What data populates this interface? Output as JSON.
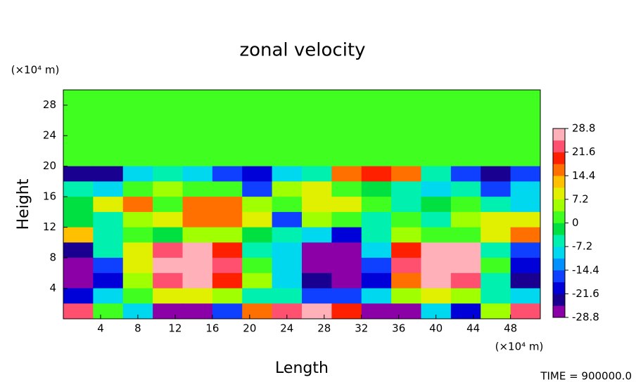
{
  "chart_data": {
    "type": "contour",
    "title": "zonal velocity",
    "xlabel": "Length",
    "ylabel": "Height",
    "xunit": "(×10⁴ m)",
    "yunit": "(×10⁴ m)",
    "footer": "TIME = 900000.0",
    "xlim": [
      0,
      51.2
    ],
    "ylim": [
      0,
      30
    ],
    "xticks": [
      4,
      8,
      12,
      16,
      20,
      24,
      28,
      32,
      36,
      40,
      44,
      48
    ],
    "yticks": [
      4,
      8,
      12,
      16,
      20,
      24,
      28
    ],
    "clim": [
      -28.8,
      28.8
    ],
    "cticks": [
      28.8,
      21.6,
      14.4,
      7.2,
      0,
      -7.2,
      -14.4,
      -21.6,
      -28.8
    ],
    "colors": [
      "#8c00a8",
      "#1a0090",
      "#0000d8",
      "#1040ff",
      "#0090ff",
      "#00d8f0",
      "#00f0b0",
      "#00e040",
      "#40ff20",
      "#a0ff00",
      "#e0f000",
      "#ffc000",
      "#ff7000",
      "#ff2000",
      "#ff5070",
      "#ffb0b8"
    ],
    "x": [
      1.6,
      4.8,
      8,
      11.2,
      14.4,
      17.6,
      20.8,
      24,
      27.2,
      30.4,
      33.6,
      36.8,
      40,
      43.2,
      46.4,
      49.6
    ],
    "y": [
      29,
      27,
      25,
      23,
      21,
      19,
      17,
      15,
      13,
      11,
      9,
      7,
      5,
      3,
      1
    ],
    "z": [
      [
        0.5,
        0.5,
        0.5,
        0.5,
        0.5,
        0.5,
        0.5,
        0.5,
        0.5,
        0.5,
        0.5,
        0.5,
        0.5,
        0.5,
        0.5,
        0.5
      ],
      [
        0.5,
        0.5,
        0.5,
        0.5,
        0.5,
        0.5,
        0.5,
        0.5,
        0.5,
        0.5,
        0.5,
        0.5,
        0.5,
        0.5,
        0.5,
        0.5
      ],
      [
        0.5,
        0.5,
        0.5,
        0.5,
        0.5,
        0.5,
        0.5,
        0.5,
        0.5,
        0.5,
        0.5,
        0.5,
        0.5,
        0.5,
        0.5,
        0.5
      ],
      [
        1,
        1,
        1,
        1,
        1,
        1,
        1,
        1,
        1,
        1,
        1,
        1,
        1,
        1,
        1,
        1
      ],
      [
        3,
        3,
        3,
        3,
        3,
        3,
        3,
        3,
        3,
        3,
        3,
        3,
        3,
        3,
        3,
        3
      ],
      [
        -24,
        -22,
        -10,
        -5,
        -8,
        -18,
        -20,
        -8,
        -5,
        15,
        20,
        18,
        -5,
        -15,
        -22,
        -18
      ],
      [
        -5,
        -8,
        0,
        5,
        3,
        0,
        -15,
        5,
        10,
        0,
        -3,
        -5,
        -10,
        -5,
        -15,
        -10
      ],
      [
        -3,
        8,
        18,
        3,
        18,
        15,
        5,
        0,
        8,
        10,
        0,
        -5,
        -3,
        0,
        -5,
        -8
      ],
      [
        -3,
        -5,
        5,
        10,
        15,
        18,
        10,
        -15,
        5,
        0,
        -5,
        0,
        -5,
        5,
        10,
        8
      ],
      [
        12,
        -5,
        0,
        -3,
        5,
        5,
        -3,
        -5,
        -10,
        -20,
        -5,
        5,
        0,
        3,
        10,
        15
      ],
      [
        -25,
        -5,
        10,
        25,
        28,
        20,
        -5,
        -10,
        -28,
        -28,
        -10,
        20,
        28,
        28,
        -5,
        -15
      ],
      [
        -28,
        -15,
        10,
        28,
        28,
        25,
        0,
        -10,
        -28,
        -28,
        -15,
        25,
        28,
        28,
        0,
        -20
      ],
      [
        -28,
        -20,
        5,
        22,
        28,
        20,
        5,
        -10,
        -25,
        -28,
        -20,
        15,
        28,
        25,
        -5,
        -22
      ],
      [
        -20,
        -10,
        0,
        8,
        10,
        5,
        -5,
        -5,
        -15,
        -18,
        -8,
        5,
        10,
        5,
        -5,
        -10
      ],
      [
        25,
        0,
        -10,
        -28,
        -28,
        -15,
        15,
        25,
        28,
        20,
        -28,
        -28,
        -10,
        -20,
        5,
        25
      ]
    ]
  }
}
